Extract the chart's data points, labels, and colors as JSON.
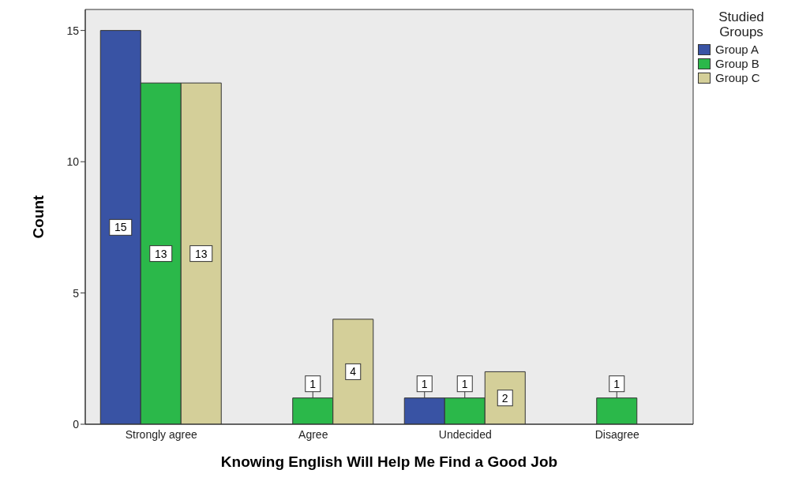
{
  "chart_data": {
    "type": "bar",
    "xlabel": "Knowing English Will Help Me Find a Good Job",
    "ylabel": "Count",
    "legend_title": "Studied Groups",
    "categories": [
      "Strongly agree",
      "Agree",
      "Undecided",
      "Disagree"
    ],
    "series": [
      {
        "name": "Group A",
        "color": "#3953a4",
        "values": [
          15,
          null,
          1,
          null
        ]
      },
      {
        "name": "Group B",
        "color": "#2bb84a",
        "values": [
          13,
          1,
          1,
          1
        ]
      },
      {
        "name": "Group C",
        "color": "#d4cf99",
        "values": [
          13,
          4,
          2,
          null
        ]
      }
    ],
    "ylim": [
      0,
      15.8
    ],
    "yticks": [
      0,
      5,
      10,
      15
    ],
    "legend": "top right",
    "data_labels": true
  }
}
